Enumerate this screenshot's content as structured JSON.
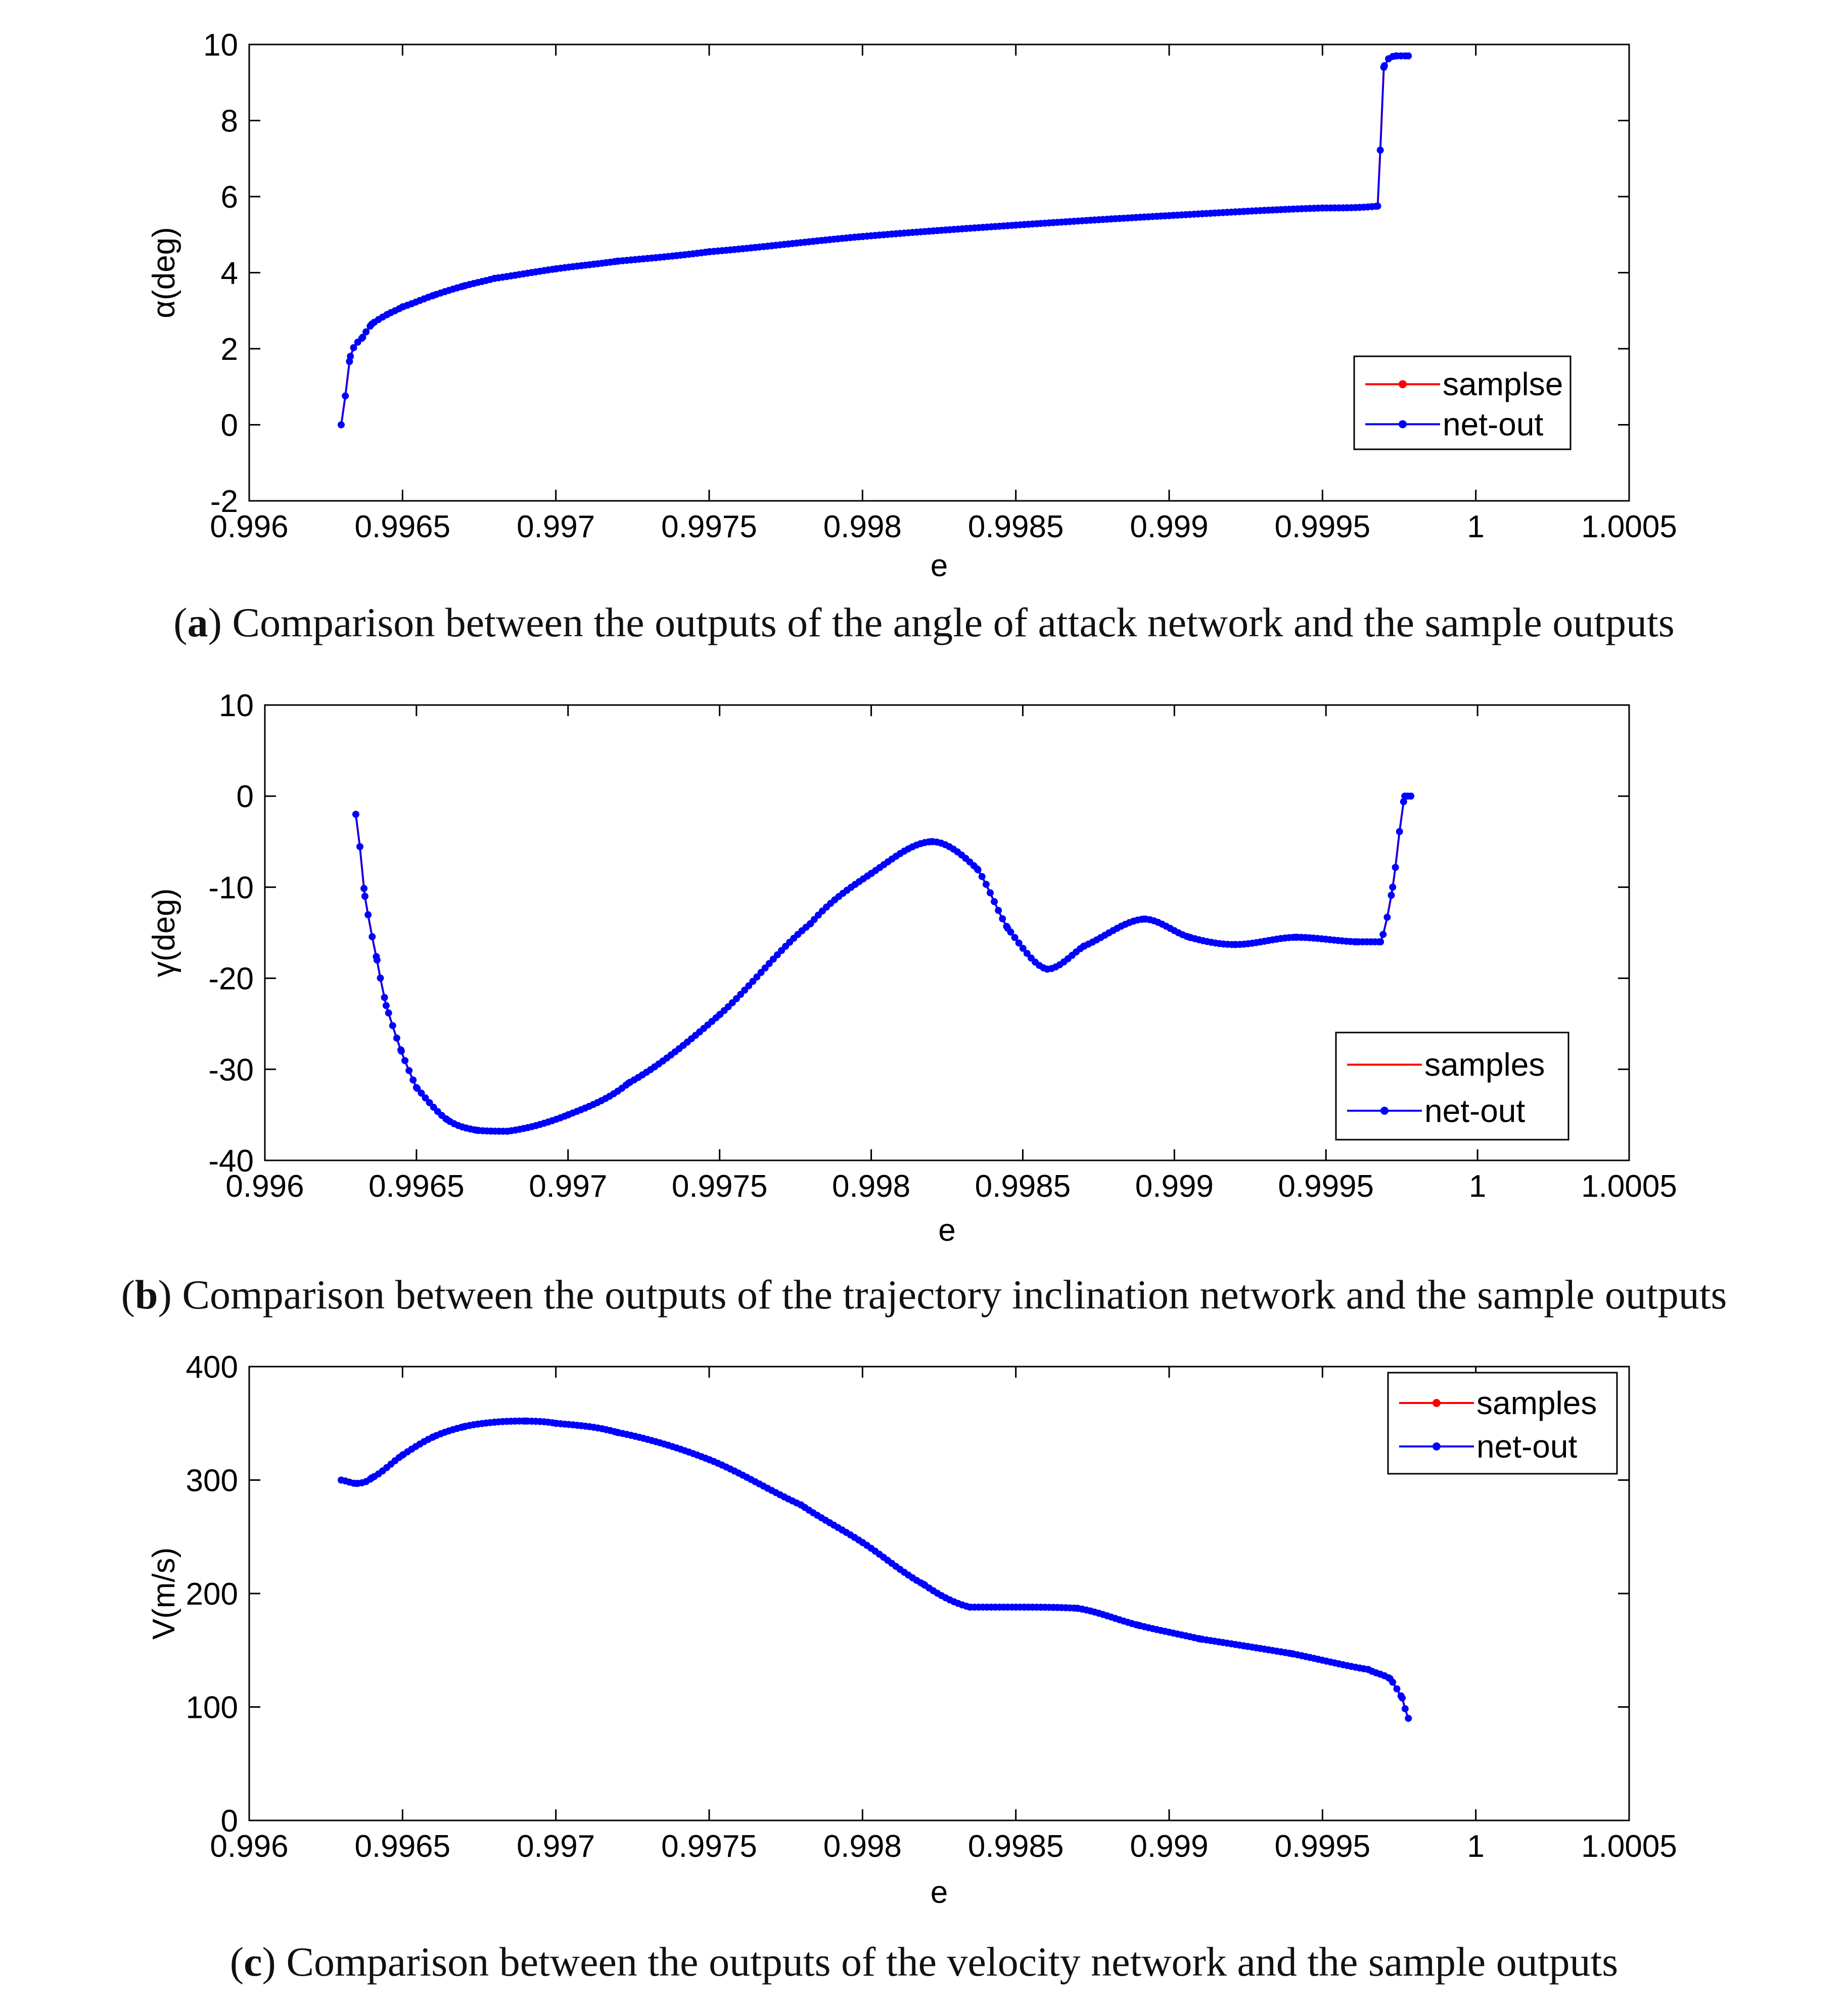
{
  "colors": {
    "samples": "#ff0000",
    "net_out": "#0000ff",
    "axis": "#000000"
  },
  "chart_data": [
    {
      "type": "line",
      "panel_letter": "a",
      "caption_text": "Comparison between the outputs of the angle of attack network and the sample outputs",
      "xlabel": "e",
      "ylabel": "α(deg)",
      "xlim": [
        0.996,
        1.0005
      ],
      "ylim": [
        -2,
        10
      ],
      "xticks": [
        "0.996",
        "0.9965",
        "0.997",
        "0.9975",
        "0.998",
        "0.9985",
        "0.999",
        "0.9995",
        "1",
        "1.0005"
      ],
      "yticks": [
        "-2",
        "0",
        "2",
        "4",
        "6",
        "8",
        "10"
      ],
      "legend": {
        "position": "bottom-right",
        "entries": [
          "samplse",
          "net-out"
        ]
      },
      "knots": {
        "x": [
          0.9963,
          0.99633,
          0.99637,
          0.9964,
          0.99645,
          0.9965,
          0.9966,
          0.9967,
          0.9968,
          0.997,
          0.9972,
          0.9975,
          0.998,
          0.9985,
          0.999,
          0.9995,
          0.99968,
          0.9997,
          0.99974,
          0.99978
        ],
        "y": [
          0.0,
          1.8,
          2.3,
          2.65,
          2.9,
          3.1,
          3.4,
          3.65,
          3.85,
          4.1,
          4.3,
          4.55,
          4.95,
          5.25,
          5.5,
          5.7,
          5.75,
          9.4,
          9.7,
          9.7
        ]
      },
      "series": [
        {
          "name": "samplse",
          "color": "#ff0000",
          "marker": true
        },
        {
          "name": "net-out",
          "color": "#0000ff",
          "marker": true
        }
      ]
    },
    {
      "type": "line",
      "panel_letter": "b",
      "caption_text": "Comparison between the outputs of the trajectory inclination network and the sample outputs",
      "xlabel": "e",
      "ylabel": "γ(deg)",
      "xlim": [
        0.996,
        1.0005
      ],
      "ylim": [
        -40,
        10
      ],
      "xticks": [
        "0.996",
        "0.9965",
        "0.997",
        "0.9975",
        "0.998",
        "0.9985",
        "0.999",
        "0.9995",
        "1",
        "1.0005"
      ],
      "yticks": [
        "-40",
        "-30",
        "-20",
        "-10",
        "0",
        "10"
      ],
      "legend": {
        "position": "bottom-right",
        "entries": [
          "samples",
          "net-out"
        ]
      },
      "knots": {
        "x": [
          0.9963,
          0.99633,
          0.99637,
          0.9964,
          0.99645,
          0.9965,
          0.9966,
          0.9967,
          0.9968,
          0.997,
          0.9972,
          0.9975,
          0.9978,
          0.998,
          0.9982,
          0.99835,
          0.99845,
          0.99858,
          0.9987,
          0.9989,
          0.99905,
          0.9992,
          0.9994,
          0.9996,
          0.99968,
          0.99972,
          0.99976,
          0.99978
        ],
        "y": [
          -2,
          -11,
          -18,
          -23,
          -28,
          -32,
          -35.5,
          -36.7,
          -36.8,
          -35,
          -31.5,
          -24,
          -14,
          -8.5,
          -5,
          -8,
          -14.5,
          -19,
          -16.5,
          -13.5,
          -15.5,
          -16.3,
          -15.5,
          -16,
          -16,
          -10,
          0,
          0
        ]
      },
      "series": [
        {
          "name": "samples",
          "color": "#ff0000",
          "marker": false
        },
        {
          "name": "net-out",
          "color": "#0000ff",
          "marker": true
        }
      ]
    },
    {
      "type": "line",
      "panel_letter": "c",
      "caption_text": "Comparison between the outputs of the velocity network and the sample outputs",
      "xlabel": "e",
      "ylabel": "V(m/s)",
      "xlim": [
        0.996,
        1.0005
      ],
      "ylim": [
        0,
        400
      ],
      "xticks": [
        "0.996",
        "0.9965",
        "0.997",
        "0.9975",
        "0.998",
        "0.9985",
        "0.999",
        "0.9995",
        "1",
        "1.0005"
      ],
      "yticks": [
        "0",
        "100",
        "200",
        "300",
        "400"
      ],
      "legend": {
        "position": "top-right",
        "entries": [
          "samples",
          "net-out"
        ]
      },
      "knots": {
        "x": [
          0.9963,
          0.99635,
          0.9964,
          0.9965,
          0.9966,
          0.9967,
          0.9968,
          0.9969,
          0.997,
          0.9972,
          0.9975,
          0.9978,
          0.998,
          0.9982,
          0.99835,
          0.9985,
          0.9987,
          0.9989,
          0.9991,
          0.9994,
          0.99965,
          0.99972,
          0.99976,
          0.99978
        ],
        "y": [
          300,
          297,
          302,
          322,
          338,
          347,
          351,
          352,
          350,
          342,
          318,
          278,
          245,
          208,
          188,
          188,
          187,
          172,
          160,
          147,
          133,
          125,
          108,
          90
        ]
      },
      "series": [
        {
          "name": "samples",
          "color": "#ff0000",
          "marker": true
        },
        {
          "name": "net-out",
          "color": "#0000ff",
          "marker": true
        }
      ]
    }
  ]
}
